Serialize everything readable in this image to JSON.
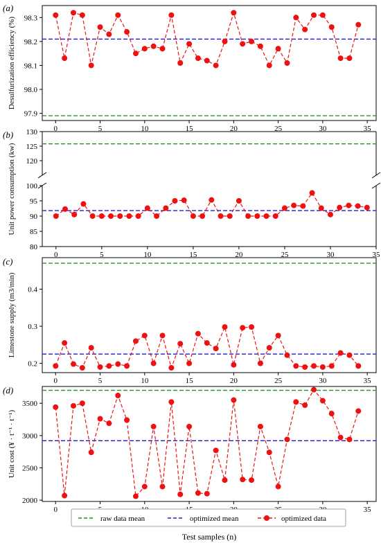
{
  "colors": {
    "raw_mean": "#1a9c1a",
    "optimized_mean": "#1a1ad6",
    "optimized_data": "#ee1111"
  },
  "legend": {
    "raw_label": "raw data mean",
    "opt_mean_label": "optimized mean",
    "opt_data_label": "optimized data",
    "placement": "bottom-center"
  },
  "xlabel": "Test samples (n)",
  "x_ticks": [
    "0",
    "5",
    "10",
    "15",
    "20",
    "25",
    "30",
    "35"
  ],
  "chart_data": [
    {
      "type": "line",
      "panel_label": "(a)",
      "ylabel": "Desulfurization efficiency (%)",
      "ylim": [
        97.87,
        98.35
      ],
      "yticks": [
        97.9,
        98.0,
        98.1,
        98.2,
        98.3
      ],
      "ytick_labels": [
        "97.9",
        "98.0",
        "98.1",
        "98.2",
        "98.3"
      ],
      "xlim": [
        -1.5,
        36
      ],
      "raw_mean": 97.89,
      "optimized_mean": 98.21,
      "series": [
        {
          "name": "optimized data",
          "x": [
            0,
            1,
            2,
            3,
            4,
            5,
            6,
            7,
            8,
            9,
            10,
            11,
            12,
            13,
            14,
            15,
            16,
            17,
            18,
            19,
            20,
            21,
            22,
            23,
            24,
            25,
            26,
            27,
            28,
            29,
            30,
            31,
            32,
            33,
            34
          ],
          "values": [
            98.31,
            98.13,
            98.32,
            98.31,
            98.1,
            98.26,
            98.23,
            98.31,
            98.24,
            98.15,
            98.17,
            98.18,
            98.17,
            98.31,
            98.11,
            98.19,
            98.13,
            98.12,
            98.1,
            98.2,
            98.32,
            98.19,
            98.2,
            98.18,
            98.1,
            98.17,
            98.11,
            98.3,
            98.25,
            98.31,
            98.31,
            98.26,
            98.13,
            98.13,
            98.27
          ]
        }
      ]
    },
    {
      "type": "line",
      "panel_label": "(b)",
      "ylabel": "Unit power consumption (kw)",
      "broken_axis": true,
      "upper_ylim": [
        115,
        130
      ],
      "upper_yticks": [
        120,
        125,
        130
      ],
      "upper_ytick_labels": [
        "120",
        "125",
        "130"
      ],
      "lower_ylim": [
        80,
        100
      ],
      "lower_yticks": [
        80,
        85,
        90,
        95,
        100
      ],
      "lower_ytick_labels": [
        "80",
        "85",
        "90",
        "95",
        "100"
      ],
      "xlim": [
        -1.5,
        35
      ],
      "raw_mean": 125.8,
      "optimized_mean": 91.8,
      "series": [
        {
          "name": "optimized data",
          "x": [
            0,
            1,
            2,
            3,
            4,
            5,
            6,
            7,
            8,
            9,
            10,
            11,
            12,
            13,
            14,
            15,
            16,
            17,
            18,
            19,
            20,
            21,
            22,
            23,
            24,
            25,
            26,
            27,
            28,
            29,
            30,
            31,
            32,
            33,
            34
          ],
          "values": [
            90.0,
            92.3,
            90.5,
            94.0,
            90.0,
            90.0,
            90.0,
            90.0,
            90.0,
            90.0,
            92.6,
            90.0,
            92.6,
            95.0,
            95.2,
            90.0,
            90.0,
            95.3,
            90.0,
            90.0,
            95.0,
            90.0,
            90.0,
            90.0,
            90.0,
            92.6,
            93.5,
            93.3,
            97.6,
            92.6,
            90.5,
            92.8,
            93.5,
            93.3,
            92.8
          ]
        }
      ]
    },
    {
      "type": "line",
      "panel_label": "(c)",
      "ylabel": "Limestone supply (m3/min)",
      "ylim": [
        0.175,
        0.485
      ],
      "yticks": [
        0.2,
        0.3,
        0.4
      ],
      "ytick_labels": [
        "0.2",
        "0.3",
        "0.4"
      ],
      "xlim": [
        -1.5,
        36
      ],
      "raw_mean": 0.47,
      "optimized_mean": 0.225,
      "series": [
        {
          "name": "optimized data",
          "x": [
            0,
            1,
            2,
            3,
            4,
            5,
            6,
            7,
            8,
            9,
            10,
            11,
            12,
            13,
            14,
            15,
            16,
            17,
            18,
            19,
            20,
            21,
            22,
            23,
            24,
            25,
            26,
            27,
            28,
            29,
            30,
            31,
            32,
            33,
            34
          ],
          "values": [
            0.193,
            0.255,
            0.198,
            0.188,
            0.242,
            0.19,
            0.193,
            0.198,
            0.193,
            0.26,
            0.275,
            0.2,
            0.275,
            0.188,
            0.253,
            0.2,
            0.28,
            0.255,
            0.24,
            0.298,
            0.196,
            0.296,
            0.298,
            0.2,
            0.242,
            0.275,
            0.222,
            0.193,
            0.19,
            0.193,
            0.19,
            0.193,
            0.228,
            0.222,
            0.193
          ]
        }
      ]
    },
    {
      "type": "line",
      "panel_label": "(d)",
      "ylabel": "Unit cost (¥ · t⁻¹ · t⁻¹)",
      "ylim": [
        1980,
        3760
      ],
      "yticks": [
        2000,
        2500,
        3000,
        3500
      ],
      "ytick_labels": [
        "2000",
        "2500",
        "3000",
        "3500"
      ],
      "xlim": [
        -1.5,
        36
      ],
      "raw_mean": 3700,
      "optimized_mean": 2920,
      "series": [
        {
          "name": "optimized data",
          "x": [
            0,
            1,
            2,
            3,
            4,
            5,
            6,
            7,
            8,
            9,
            10,
            11,
            12,
            13,
            14,
            15,
            16,
            17,
            18,
            19,
            20,
            21,
            22,
            23,
            24,
            25,
            26,
            27,
            28,
            29,
            30,
            31,
            32,
            33,
            34
          ],
          "values": [
            3440,
            2070,
            3460,
            3500,
            2740,
            3260,
            3190,
            3620,
            3240,
            2060,
            2210,
            3140,
            2210,
            3520,
            2090,
            3140,
            2110,
            2100,
            2770,
            2310,
            3550,
            2320,
            2310,
            3140,
            2740,
            2210,
            2940,
            3520,
            3470,
            3710,
            3540,
            3340,
            2970,
            2940,
            3380
          ]
        }
      ]
    }
  ]
}
